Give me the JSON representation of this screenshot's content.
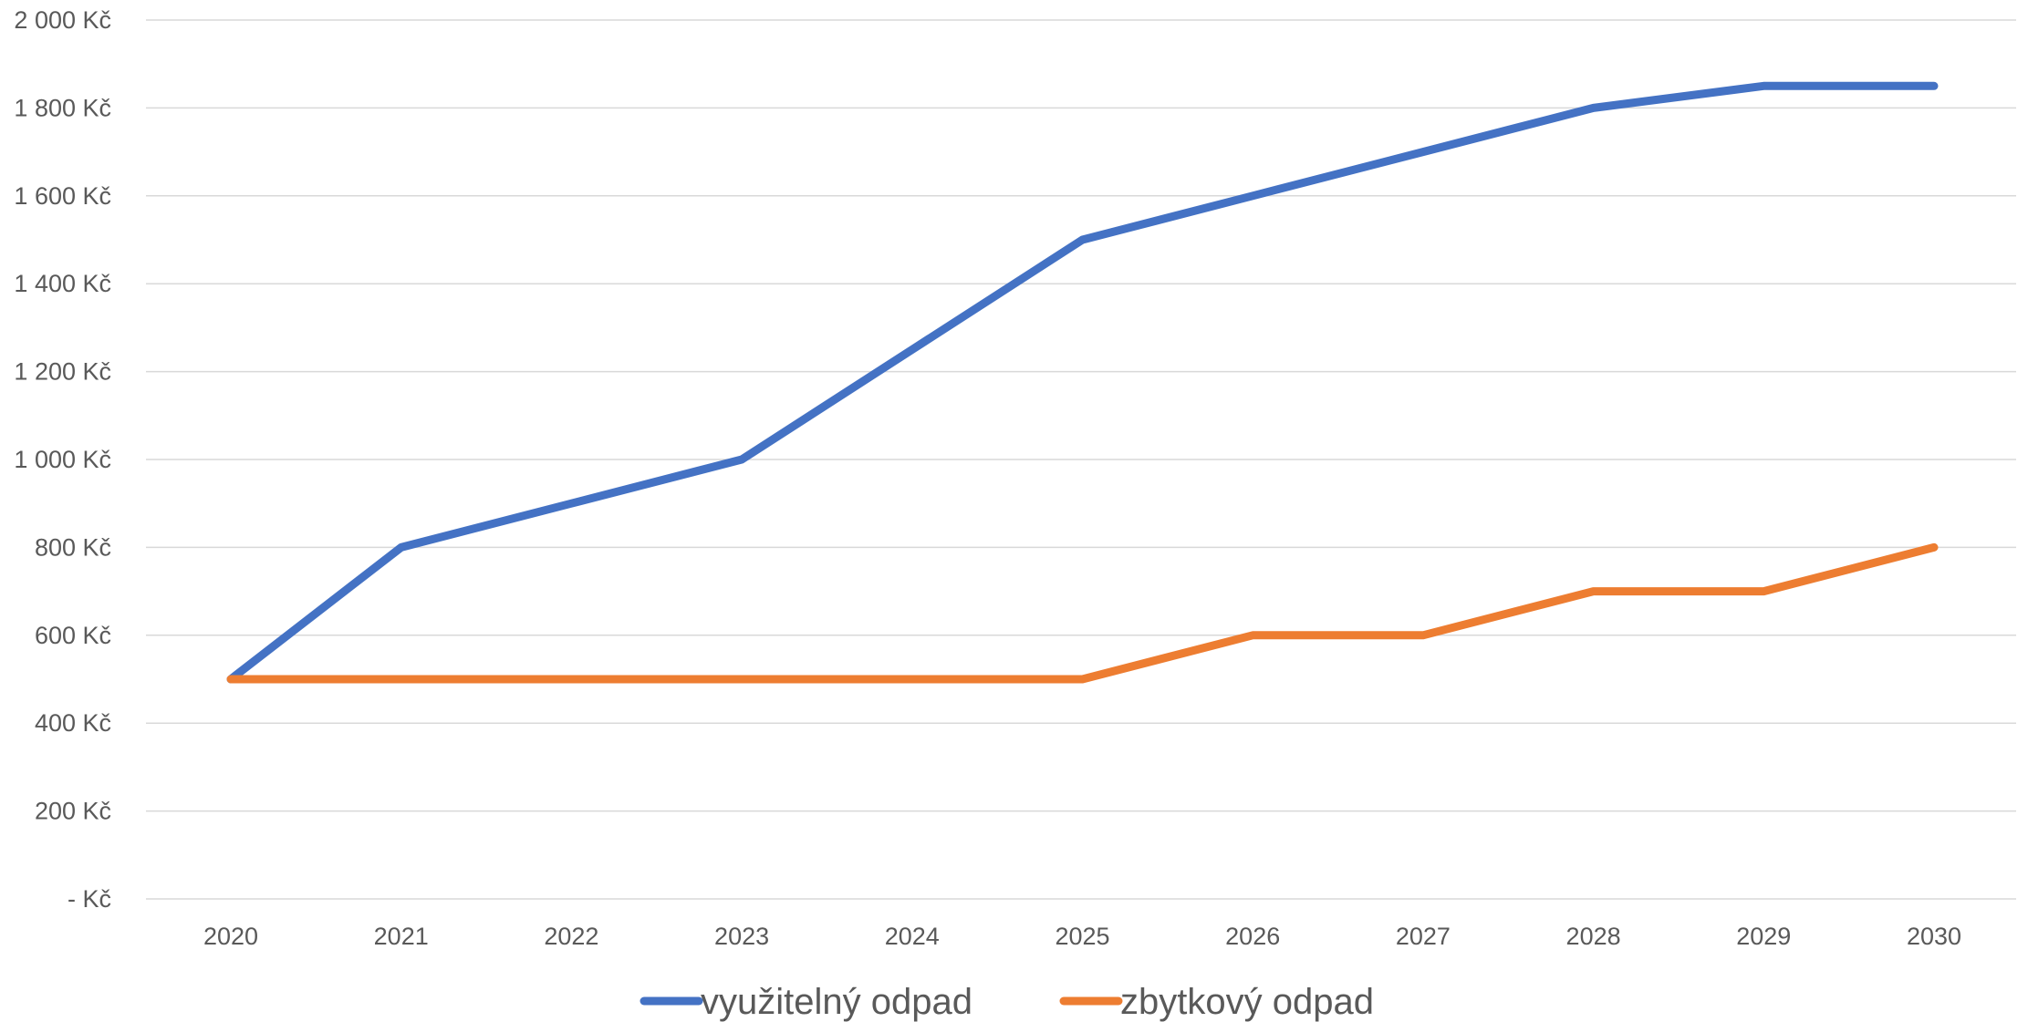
{
  "chart_data": {
    "type": "line",
    "categories": [
      "2020",
      "2021",
      "2022",
      "2023",
      "2024",
      "2025",
      "2026",
      "2027",
      "2028",
      "2029",
      "2030"
    ],
    "series": [
      {
        "name": "využitelný odpad",
        "color": "#4472C4",
        "values": [
          500,
          800,
          900,
          1000,
          1250,
          1500,
          1600,
          1700,
          1800,
          1850,
          1850
        ]
      },
      {
        "name": "zbytkový odpad",
        "color": "#ED7D31",
        "values": [
          500,
          500,
          500,
          500,
          500,
          500,
          600,
          600,
          700,
          700,
          800
        ]
      }
    ],
    "ylim": [
      0,
      2000
    ],
    "y_ticks": [
      {
        "value": 0,
        "label": "-   Kč"
      },
      {
        "value": 200,
        "label": "200 Kč"
      },
      {
        "value": 400,
        "label": "400 Kč"
      },
      {
        "value": 600,
        "label": "600 Kč"
      },
      {
        "value": 800,
        "label": "800 Kč"
      },
      {
        "value": 1000,
        "label": "1 000 Kč"
      },
      {
        "value": 1200,
        "label": "1 200 Kč"
      },
      {
        "value": 1400,
        "label": "1 400 Kč"
      },
      {
        "value": 1600,
        "label": "1 600 Kč"
      },
      {
        "value": 1800,
        "label": "1 800 Kč"
      },
      {
        "value": 2000,
        "label": "2 000 Kč"
      }
    ],
    "grid": true,
    "legend_position": "bottom",
    "gridline_color": "#D9D9D9",
    "text_color": "#595959"
  }
}
